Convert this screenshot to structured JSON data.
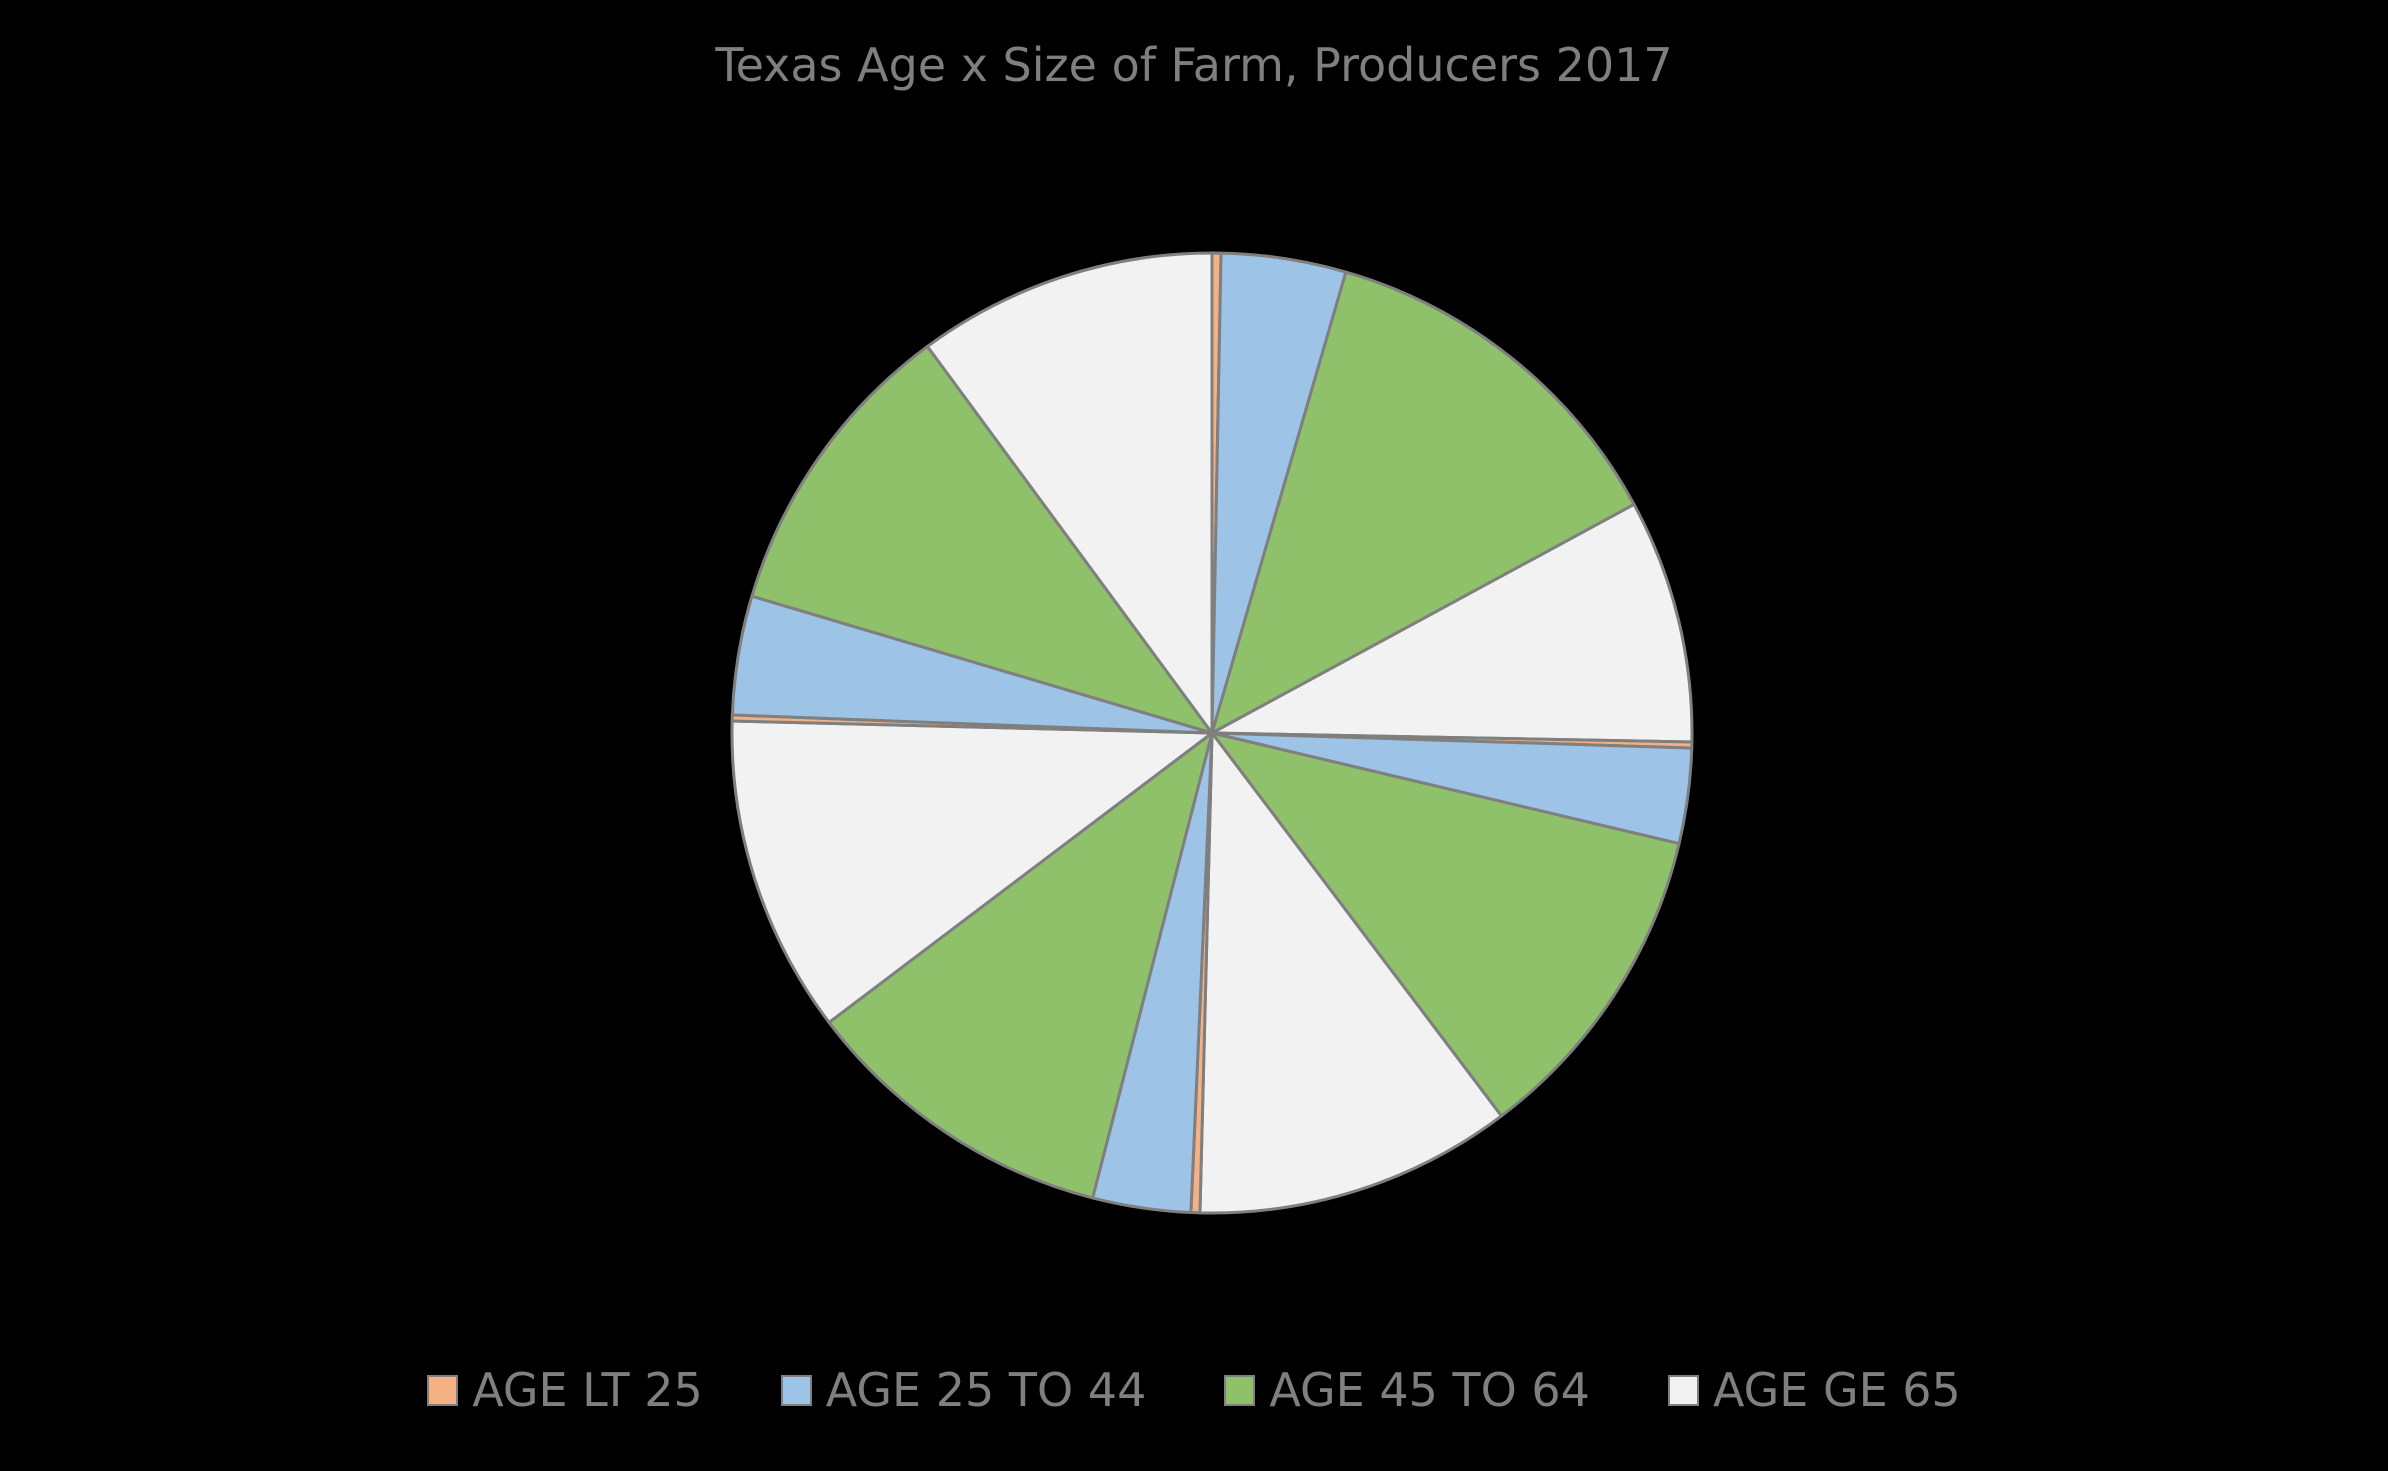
{
  "chart_data": {
    "type": "pie",
    "title": "Texas Age x Size of Farm, Producers 2017",
    "series": [
      {
        "name": "AGE LT 25",
        "color": "#f4b183"
      },
      {
        "name": "AGE 25 TO 44",
        "color": "#9dc3e6"
      },
      {
        "name": "AGE 45 TO 64",
        "color": "#8fc16b"
      },
      {
        "name": "AGE GE 65",
        "color": "#f2f2f2"
      }
    ],
    "slices": [
      {
        "series": "AGE LT 25",
        "value": 0.3
      },
      {
        "series": "AGE 25 TO 44",
        "value": 4.2
      },
      {
        "series": "AGE 45 TO 64",
        "value": 12.6
      },
      {
        "series": "AGE GE 65",
        "value": 8.2
      },
      {
        "series": "AGE LT 25",
        "value": 0.2
      },
      {
        "series": "AGE 25 TO 44",
        "value": 3.2
      },
      {
        "series": "AGE 45 TO 64",
        "value": 11.0
      },
      {
        "series": "AGE GE 65",
        "value": 10.7
      },
      {
        "series": "AGE LT 25",
        "value": 0.3
      },
      {
        "series": "AGE 25 TO 44",
        "value": 3.3
      },
      {
        "series": "AGE 45 TO 64",
        "value": 10.7
      },
      {
        "series": "AGE GE 65",
        "value": 10.7
      },
      {
        "series": "AGE LT 25",
        "value": 0.2
      },
      {
        "series": "AGE 25 TO 44",
        "value": 4.0
      },
      {
        "series": "AGE 45 TO 64",
        "value": 10.3
      },
      {
        "series": "AGE GE 65",
        "value": 10.1
      }
    ],
    "legend_position": "bottom",
    "start_angle_deg": 0,
    "direction": "clockwise",
    "slice_border_color": "#7f7f7f",
    "text_color": "#7f7f7f",
    "background": "#000000"
  }
}
